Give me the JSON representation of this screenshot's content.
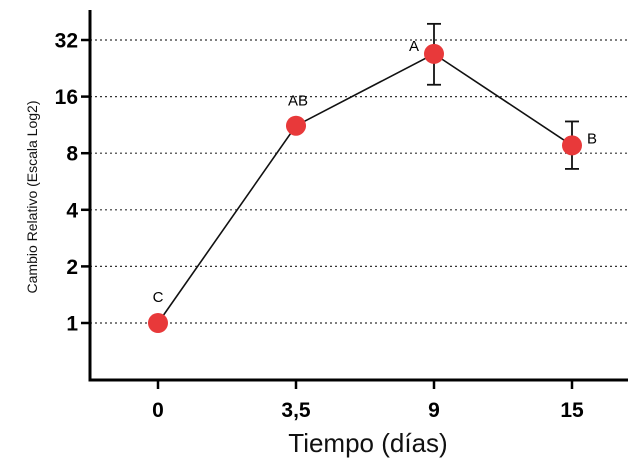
{
  "chart_data": {
    "type": "line",
    "xlabel": "Tiempo (días)",
    "ylabel": "Cambio Relativo (Escala Log2)",
    "yscale": "log2",
    "ylim": [
      0.5,
      48
    ],
    "categories": [
      "0",
      "3,5",
      "9",
      "15"
    ],
    "yticks": [
      1,
      2,
      4,
      8,
      16,
      32
    ],
    "ytick_labels": [
      "1",
      "2",
      "4",
      "8",
      "16",
      "32"
    ],
    "grid": "horizontal dotted at y ticks",
    "series": [
      {
        "color": "#e8393a",
        "values": [
          1,
          11.2,
          27,
          8.8
        ],
        "error_low": [
          null,
          null,
          18.5,
          6.6
        ],
        "error_high": [
          null,
          null,
          39,
          11.8
        ],
        "labels": [
          "C",
          "AB",
          "A",
          "B"
        ]
      }
    ]
  }
}
